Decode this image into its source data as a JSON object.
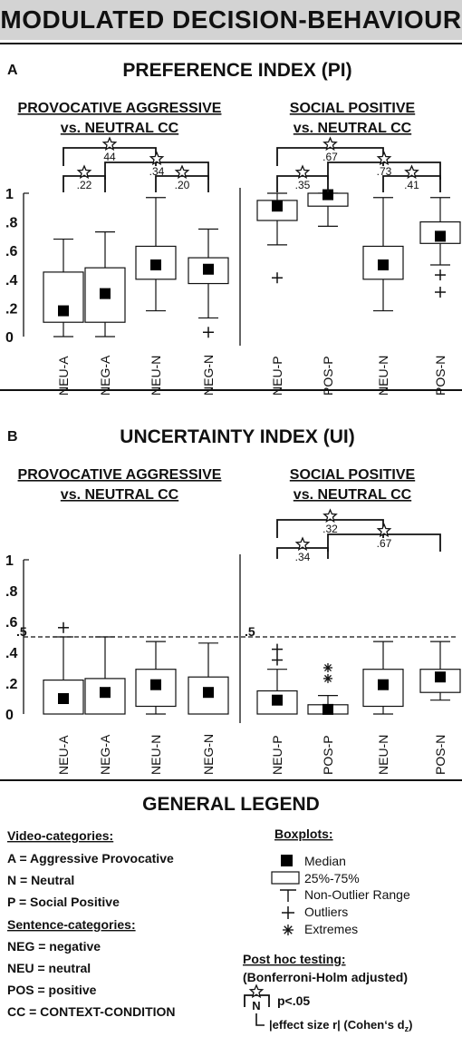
{
  "title": "MODULATED DECISION-BEHAVIOUR",
  "panels": [
    {
      "letter": "A",
      "heading": "PREFERENCE INDEX (PI)",
      "left_title": [
        "PROVOCATIVE AGGRESSIVE",
        "vs. NEUTRAL CC"
      ],
      "right_title": [
        "SOCIAL POSITIVE",
        "vs. NEUTRAL CC"
      ]
    },
    {
      "letter": "B",
      "heading": "UNCERTAINTY INDEX (UI)",
      "left_title": [
        "PROVOCATIVE AGGRESSIVE",
        "vs. NEUTRAL CC"
      ],
      "right_title": [
        "SOCIAL POSITIVE",
        "vs. NEUTRAL CC"
      ]
    }
  ],
  "chart_data": [
    {
      "type": "boxplot",
      "panel": "A",
      "ylim": [
        0,
        1
      ],
      "ytick_labels": [
        "0",
        ".2",
        ".4",
        ".6",
        ".8",
        "1"
      ],
      "yticks": [
        0,
        0.2,
        0.4,
        0.6,
        0.8,
        1
      ],
      "groups": [
        {
          "name": "PROVOCATIVE AGGRESSIVE vs. NEUTRAL CC",
          "categories": [
            "NEU-A",
            "NEG-A",
            "NEU-N",
            "NEG-N"
          ],
          "boxes": [
            {
              "q1": 0.1,
              "q3": 0.45,
              "median": 0.18,
              "whisker_low": 0.0,
              "whisker_high": 0.68,
              "outliers": []
            },
            {
              "q1": 0.1,
              "q3": 0.48,
              "median": 0.3,
              "whisker_low": 0.0,
              "whisker_high": 0.73,
              "outliers": []
            },
            {
              "q1": 0.4,
              "q3": 0.63,
              "median": 0.5,
              "whisker_low": 0.18,
              "whisker_high": 0.97,
              "outliers": []
            },
            {
              "q1": 0.37,
              "q3": 0.55,
              "median": 0.47,
              "whisker_low": 0.13,
              "whisker_high": 0.75,
              "outliers": [
                0.03
              ]
            }
          ],
          "posthoc": [
            {
              "from": 0,
              "to": 2,
              "level": 3,
              "r": "44"
            },
            {
              "from": 0,
              "to": 1,
              "level": 1,
              "r": ".22"
            },
            {
              "from": 1,
              "to": 3,
              "level": 2,
              "r": ".34"
            },
            {
              "from": 2,
              "to": 3,
              "level": 1,
              "r": ".20"
            }
          ]
        },
        {
          "name": "SOCIAL POSITIVE vs. NEUTRAL CC",
          "categories": [
            "NEU-P",
            "POS-P",
            "NEU-N",
            "POS-N"
          ],
          "boxes": [
            {
              "q1": 0.81,
              "q3": 0.95,
              "median": 0.91,
              "whisker_low": 0.64,
              "whisker_high": 1.0,
              "outliers": [
                0.41
              ]
            },
            {
              "q1": 0.91,
              "q3": 1.0,
              "median": 0.99,
              "whisker_low": 0.77,
              "whisker_high": 1.0,
              "outliers": []
            },
            {
              "q1": 0.4,
              "q3": 0.63,
              "median": 0.5,
              "whisker_low": 0.18,
              "whisker_high": 0.97,
              "outliers": []
            },
            {
              "q1": 0.65,
              "q3": 0.8,
              "median": 0.7,
              "whisker_low": 0.5,
              "whisker_high": 0.97,
              "outliers": [
                0.43,
                0.31
              ]
            }
          ],
          "posthoc": [
            {
              "from": 0,
              "to": 2,
              "level": 3,
              "r": ".67"
            },
            {
              "from": 0,
              "to": 1,
              "level": 1,
              "r": ".35"
            },
            {
              "from": 1,
              "to": 3,
              "level": 2,
              "r": ".73"
            },
            {
              "from": 2,
              "to": 3,
              "level": 1,
              "r": ".41"
            }
          ]
        }
      ]
    },
    {
      "type": "boxplot",
      "panel": "B",
      "ylim": [
        0,
        1
      ],
      "ytick_labels": [
        "0",
        ".2",
        ".4",
        ".6",
        ".8",
        "1"
      ],
      "yticks": [
        0,
        0.2,
        0.4,
        0.6,
        0.8,
        1
      ],
      "reference_line": {
        "value": 0.5,
        "label": ".5"
      },
      "groups": [
        {
          "name": "PROVOCATIVE AGGRESSIVE vs. NEUTRAL CC",
          "categories": [
            "NEU-A",
            "NEG-A",
            "NEU-N",
            "NEG-N"
          ],
          "boxes": [
            {
              "q1": 0.0,
              "q3": 0.22,
              "median": 0.1,
              "whisker_low": 0.0,
              "whisker_high": 0.5,
              "outliers": [
                0.56
              ]
            },
            {
              "q1": 0.0,
              "q3": 0.23,
              "median": 0.14,
              "whisker_low": 0.0,
              "whisker_high": 0.5,
              "outliers": []
            },
            {
              "q1": 0.05,
              "q3": 0.29,
              "median": 0.19,
              "whisker_low": 0.0,
              "whisker_high": 0.47,
              "outliers": []
            },
            {
              "q1": 0.0,
              "q3": 0.24,
              "median": 0.14,
              "whisker_low": 0.0,
              "whisker_high": 0.46,
              "outliers": []
            }
          ],
          "posthoc": []
        },
        {
          "name": "SOCIAL POSITIVE vs. NEUTRAL CC",
          "categories": [
            "NEU-P",
            "POS-P",
            "NEU-N",
            "POS-N"
          ],
          "boxes": [
            {
              "q1": 0.0,
              "q3": 0.15,
              "median": 0.09,
              "whisker_low": 0.0,
              "whisker_high": 0.29,
              "outliers": [
                0.42,
                0.35
              ]
            },
            {
              "q1": 0.0,
              "q3": 0.06,
              "median": 0.03,
              "whisker_low": 0.0,
              "whisker_high": 0.12,
              "outliers": []
            },
            {
              "q1": 0.05,
              "q3": 0.29,
              "median": 0.19,
              "whisker_low": 0.0,
              "whisker_high": 0.47,
              "outliers": []
            },
            {
              "q1": 0.14,
              "q3": 0.29,
              "median": 0.24,
              "whisker_low": 0.09,
              "whisker_high": 0.47,
              "outliers": []
            }
          ],
          "extremes": [
            {
              "box": 1,
              "values": [
                0.3,
                0.23
              ]
            }
          ],
          "posthoc": [
            {
              "from": 0,
              "to": 2,
              "level": 3,
              "r": ".32"
            },
            {
              "from": 0,
              "to": 1,
              "level": 1,
              "r": ".34"
            },
            {
              "from": 1,
              "to": 3,
              "level": 2,
              "r": ".67"
            }
          ]
        }
      ]
    }
  ],
  "legend": {
    "heading": "GENERAL LEGEND",
    "video_heading": "Video-categories",
    "video_items": [
      "A = Aggressive Provocative",
      "N = Neutral",
      "P = Social Positive"
    ],
    "sentence_heading": "Sentence-categories",
    "sentence_items": [
      "NEG = negative",
      "NEU = neutral",
      "POS = positive"
    ],
    "cc_item": "CC = CONTEXT-CONDITION",
    "boxplots_heading": "Boxplots",
    "boxplot_items": [
      "Median",
      "25%-75%",
      "Non-Outlier Range",
      "Outliers",
      "Extremes"
    ],
    "posthoc_heading": "Post hoc testing",
    "posthoc_sub": "(Bonferroni-Holm adjusted)",
    "posthoc_star_letter": "N",
    "posthoc_p": "p<.05",
    "posthoc_effect": "|effect size r| (Cohen‘s d",
    "posthoc_effect_sub": "z",
    "posthoc_effect_end": ")"
  }
}
